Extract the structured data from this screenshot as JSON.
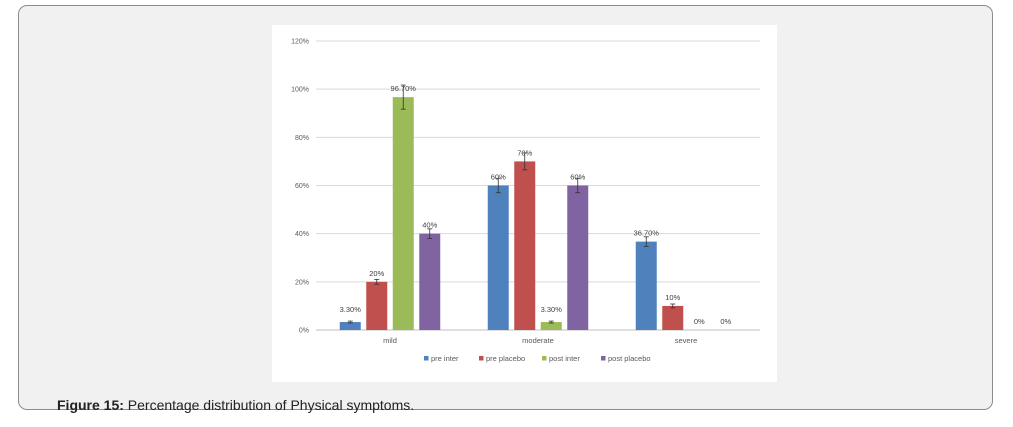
{
  "figure": {
    "label": "Figure 15:",
    "text": " Percentage distribution of Physical symptoms."
  },
  "chart_data": {
    "type": "bar",
    "categories": [
      "mild",
      "moderate",
      "severe"
    ],
    "ylim": [
      0,
      120
    ],
    "yticks": [
      0,
      20,
      40,
      60,
      80,
      100,
      120
    ],
    "ytick_labels": [
      "0%",
      "20%",
      "40%",
      "60%",
      "80%",
      "100%",
      "120%"
    ],
    "grid": true,
    "legend_position": "bottom",
    "error_bars": true,
    "series": [
      {
        "name": "pre inter",
        "color": "#4f81bd",
        "values": [
          3.3,
          60,
          36.7
        ],
        "labels": [
          "3.30%",
          "60%",
          "36.70%"
        ],
        "errors": [
          0.4,
          3,
          2
        ]
      },
      {
        "name": "pre placebo",
        "color": "#c0504d",
        "values": [
          20,
          70,
          10
        ],
        "labels": [
          "20%",
          "70%",
          "10%"
        ],
        "errors": [
          1,
          3.5,
          0.8
        ]
      },
      {
        "name": "post inter",
        "color": "#9bbb59",
        "values": [
          96.7,
          3.3,
          0
        ],
        "labels": [
          "96.70%",
          "3.30%",
          "0%"
        ],
        "errors": [
          5,
          0.4,
          0
        ]
      },
      {
        "name": "post placebo",
        "color": "#8064a2",
        "values": [
          40,
          60,
          0
        ],
        "labels": [
          "40%",
          "60%",
          "0%"
        ],
        "errors": [
          2,
          3,
          0
        ]
      }
    ]
  }
}
